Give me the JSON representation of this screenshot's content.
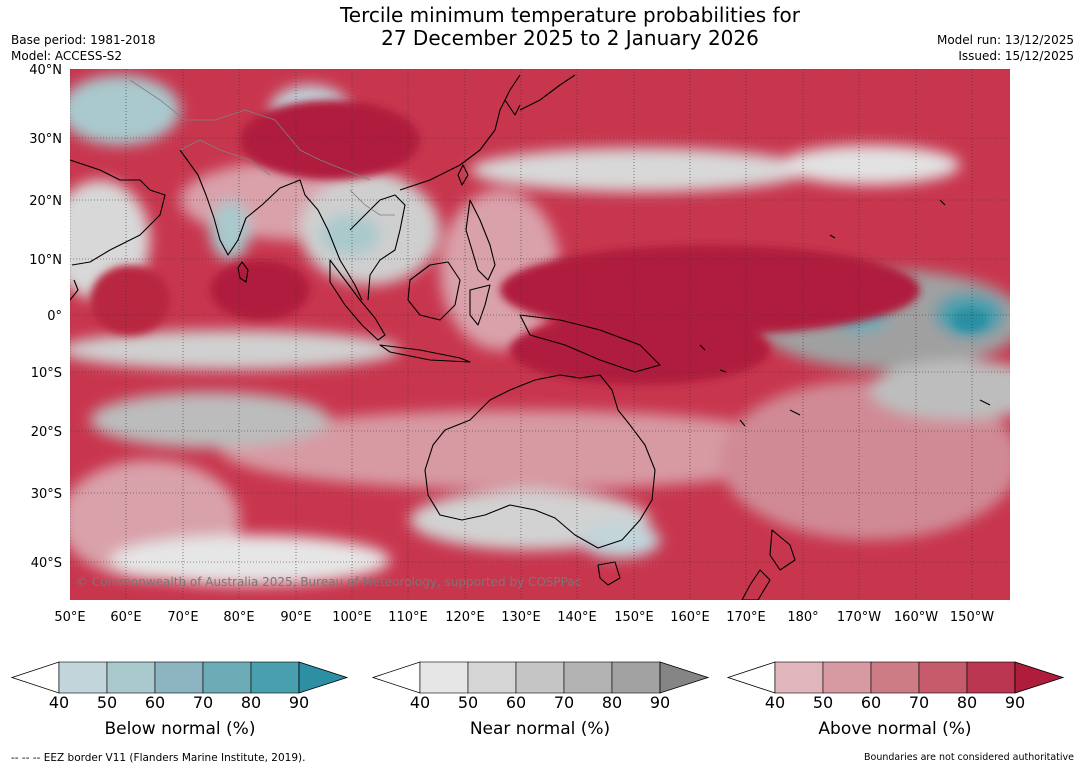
{
  "header": {
    "title_line1": "Tercile minimum temperature probabilities for",
    "title_line2": "27 December 2025 to 2 January 2026",
    "base_period": "Base period: 1981-2018",
    "model": "Model: ACCESS-S2",
    "model_run": "Model run: 13/12/2025",
    "issued": "Issued: 15/12/2025"
  },
  "map": {
    "lat_labels": [
      "40°N",
      "30°N",
      "20°N",
      "10°N",
      "0°",
      "10°S",
      "20°S",
      "30°S",
      "40°S"
    ],
    "lon_labels": [
      "50°E",
      "60°E",
      "70°E",
      "80°E",
      "90°E",
      "100°E",
      "110°E",
      "120°E",
      "130°E",
      "140°E",
      "150°E",
      "160°E",
      "170°E",
      "180°",
      "170°W",
      "160°W",
      "150°W"
    ],
    "copyright": "© Commonwealth of Australia 2025, Bureau of Meteorology, supported by COSPPac",
    "colors": {
      "background_above": "#c8364e",
      "strong_above": "#b01c3c",
      "near_normal": "#c6c6c6",
      "strong_near": "#8c8c8c",
      "below_normal": "#8fb6c2",
      "strong_below": "#2c95a8",
      "coastline": "#000000",
      "borders": "#808080"
    }
  },
  "legends": [
    {
      "label": "Below normal (%)",
      "ticks": [
        "40",
        "50",
        "60",
        "70",
        "80",
        "90"
      ],
      "colors": [
        "#c1d5db",
        "#a9c9cd",
        "#8db5c1",
        "#6cacb6",
        "#4a9fae",
        "#2c8fa3"
      ]
    },
    {
      "label": "Near normal (%)",
      "ticks": [
        "40",
        "50",
        "60",
        "70",
        "80",
        "90"
      ],
      "colors": [
        "#e6e6e6",
        "#d5d5d5",
        "#c5c5c5",
        "#b3b3b3",
        "#a2a2a2",
        "#858585"
      ]
    },
    {
      "label": "Above normal (%)",
      "ticks": [
        "40",
        "50",
        "60",
        "70",
        "80",
        "90"
      ],
      "colors": [
        "#e0b6bc",
        "#d89aa2",
        "#cd7c86",
        "#c65c6b",
        "#ba3550",
        "#b01c3c"
      ]
    }
  ],
  "footer": {
    "eez": "--  --  -- EEZ border V11 (Flanders Marine Institute, 2019).",
    "disclaimer": "Boundaries are not considered authoritative"
  }
}
